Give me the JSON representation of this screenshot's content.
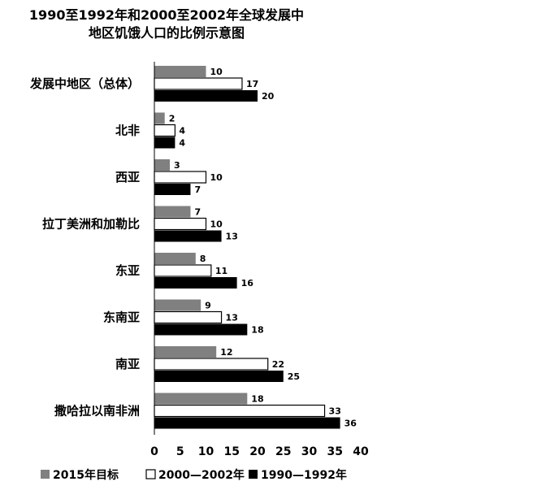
{
  "chart_data": {
    "type": "bar",
    "orientation": "horizontal",
    "title": [
      "1990至1992年和2000至2002年全球发展中",
      "地区饥饿人口的比例示意图"
    ],
    "categories": [
      "发展中地区（总体）",
      "北非",
      "西亚",
      "拉丁美洲和加勒比",
      "东亚",
      "东南亚",
      "南亚",
      "撒哈拉以南非洲"
    ],
    "series": [
      {
        "name": "2015年目标",
        "color": "#808080",
        "values": [
          10,
          2,
          3,
          7,
          8,
          9,
          12,
          18
        ]
      },
      {
        "name": "2000—2002年",
        "color": "#ffffff",
        "values": [
          17,
          4,
          10,
          10,
          11,
          13,
          22,
          33
        ]
      },
      {
        "name": "1990—1992年",
        "color": "#000000",
        "values": [
          20,
          4,
          7,
          13,
          16,
          18,
          25,
          36
        ]
      }
    ],
    "xticks": [
      0,
      5,
      10,
      15,
      20,
      25,
      30,
      35,
      40
    ],
    "xlim": [
      0,
      40
    ],
    "xlabel": "",
    "ylabel": "",
    "grid": false,
    "legend_position": "bottom"
  }
}
